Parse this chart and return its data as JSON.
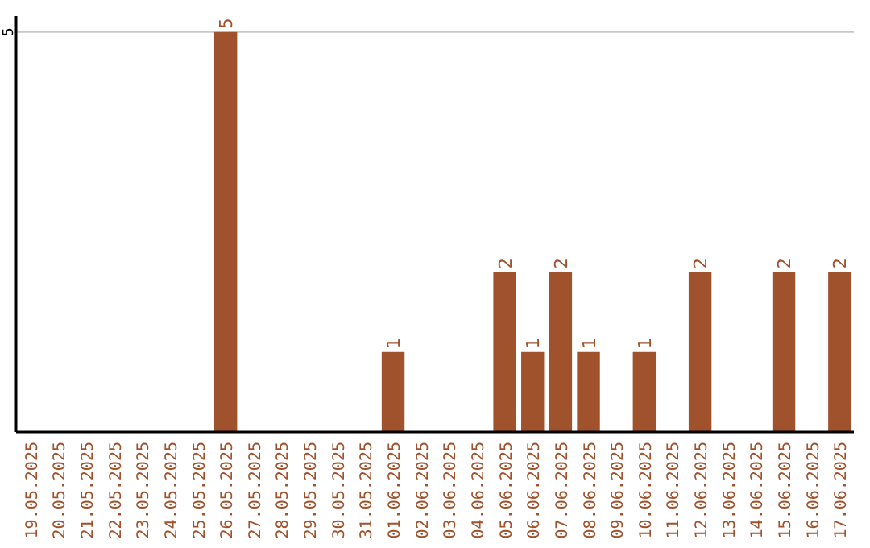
{
  "chart_data": {
    "type": "bar",
    "categories": [
      "19.05.2025",
      "20.05.2025",
      "21.05.2025",
      "22.05.2025",
      "23.05.2025",
      "24.05.2025",
      "25.05.2025",
      "26.05.2025",
      "27.05.2025",
      "28.05.2025",
      "29.05.2025",
      "30.05.2025",
      "31.05.2025",
      "01.06.2025",
      "02.06.2025",
      "03.06.2025",
      "04.06.2025",
      "05.06.2025",
      "06.06.2025",
      "07.06.2025",
      "08.06.2025",
      "09.06.2025",
      "10.06.2025",
      "11.06.2025",
      "12.06.2025",
      "13.06.2025",
      "14.06.2025",
      "15.06.2025",
      "16.06.2025",
      "17.06.2025"
    ],
    "values": [
      0,
      0,
      0,
      0,
      0,
      0,
      0,
      5,
      0,
      0,
      0,
      0,
      0,
      1,
      0,
      0,
      0,
      2,
      1,
      2,
      1,
      0,
      1,
      0,
      2,
      0,
      0,
      2,
      0,
      2
    ],
    "value_labels": [
      null,
      null,
      null,
      null,
      null,
      null,
      null,
      "5",
      null,
      null,
      null,
      null,
      null,
      "1",
      null,
      null,
      null,
      "2",
      "1",
      "2",
      "1",
      null,
      "1",
      null,
      "2",
      null,
      null,
      "2",
      null,
      "2"
    ],
    "color": "#a0522d",
    "ylim": [
      0,
      5.2
    ],
    "yticks": [
      5
    ],
    "grid": "y"
  }
}
